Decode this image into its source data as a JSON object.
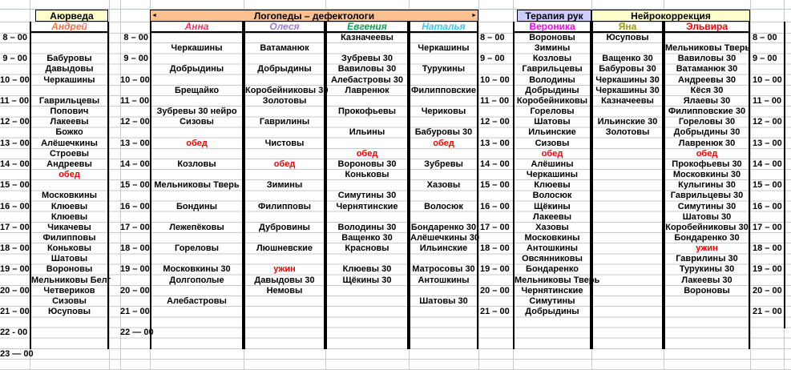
{
  "groups": [
    {
      "label": "Аюрведа",
      "bg": "#FFFFCC"
    },
    {
      "label": "Логопеды – дефектологи",
      "bg": "#FAC090"
    },
    {
      "label": "Терапия рук",
      "bg": "#CCCCFF"
    },
    {
      "label": "Нейрокоррекция",
      "bg": "#FFFFCC"
    }
  ],
  "meals": {
    "labels": [
      "обед",
      "ужин"
    ],
    "color": "#FF0000"
  },
  "specialists": [
    {
      "name": "Андрей",
      "color": "#FF7148",
      "italic": true,
      "slots": [
        "",
        "",
        "Бабуровы",
        "Давыдовы",
        "Черкашины",
        "",
        "Гаврильцевы",
        "Попович",
        "Лакеевы",
        "Божко",
        "Алёшечкины",
        "Строевы",
        "Андреевы",
        "обед",
        "",
        "Московкины",
        "Клюевы",
        "Клюевы",
        "Чикачевы",
        "Филипповы",
        "Коньковы",
        "Шатовы",
        "Вороновы",
        "Мельниковы Белг",
        "Четвериков",
        "Сизовы",
        "Юсуповы",
        "",
        "",
        ""
      ]
    },
    {
      "name": "Анна",
      "color": "#FF3366",
      "italic": true,
      "slots": [
        "",
        "Черкашины",
        "",
        "Добрыдины",
        "",
        "Брещайко",
        "",
        "Зубревы 30 нейро",
        "Сизовы",
        "",
        "обед",
        "",
        "Козловы",
        "",
        "Мельниковы Тверь",
        "",
        "Бондины",
        "",
        "Лежепёковы",
        "",
        "Гореловы",
        "",
        "Московкины 30",
        "Долгополые",
        "",
        "Алебастровы",
        "",
        "",
        "",
        ""
      ]
    },
    {
      "name": "Олеся",
      "color": "#9A7BD8",
      "italic": true,
      "slots": [
        "",
        "Ватаманюк",
        "",
        "Добрыдины",
        "",
        "Коробейниковы 30",
        "Золотовы",
        "",
        "Гаврилины",
        "",
        "Чистовы",
        "",
        "обед",
        "",
        "Зимины",
        "",
        "Филипповы",
        "",
        "Дубровины",
        "",
        "Люшневские",
        "",
        "ужин",
        "Давыдовы 30",
        "Немовы",
        "",
        "",
        "",
        "",
        ""
      ]
    },
    {
      "name": "Евгения",
      "color": "#00A651",
      "italic": true,
      "slots": [
        "Казначеевы",
        "",
        "Зубревы 30",
        "Вавиловы 30",
        "Алебастровы 30",
        "Лавренюк",
        "",
        "Прокофьевы",
        "",
        "Ильины",
        "",
        "обед",
        "Вороновы 30",
        "Коньковы",
        "",
        "Симутины 30",
        "Чернятинские",
        "",
        "Володины 30",
        "Ващенко 30",
        "Красновы",
        "",
        "Клюевы 30",
        "Щёкины 30",
        "",
        "",
        "",
        "",
        "",
        ""
      ]
    },
    {
      "name": "Наталья",
      "color": "#33CCF0",
      "italic": true,
      "slots": [
        "",
        "Черкашины",
        "",
        "Турукины",
        "",
        "Филипповские",
        "",
        "Чериковы",
        "",
        "Бабуровы 30",
        "обед",
        "",
        "Зубревы",
        "",
        "Хазовы",
        "",
        "Волосюк",
        "",
        "Бондаренко 30",
        "Алёшечкины 30",
        "Ильинские",
        "",
        "Матросовы 30",
        "Антошкины",
        "",
        "Шатовы 30",
        "",
        "",
        "",
        ""
      ]
    },
    {
      "name": "Вероника",
      "color": "#FF00FF",
      "italic": false,
      "slots": [
        "Вороновы",
        "Зимины",
        "Козловы",
        "Гаврильцевы",
        "Володины",
        "Добрыдины",
        "Коробейниковы",
        "Гореловы",
        "Шатовы",
        "Ильинские",
        "Сизовы",
        "обед",
        "Алёшины",
        "Черкашины",
        "Клюевы",
        "Волосюк",
        "Щёкины",
        "Лакеевы",
        "Хазовы",
        "Московкины",
        "Антошкины",
        "Овсянниковы",
        "Бондаренко",
        "Мельниковы Тверь",
        "Чернятинские",
        "Симутины",
        "Добрыдины",
        "",
        "",
        ""
      ]
    },
    {
      "name": "Яна",
      "color": "#9A9A00",
      "italic": false,
      "slots": [
        "Юсуповы",
        "",
        "Ващенко 30",
        "Бабуровы 30",
        "Черкашины 30",
        "Черкашины 30",
        "Казначеевы",
        "",
        "Ильинские 30",
        "Золотовы",
        "",
        "",
        "",
        "",
        "",
        "",
        "",
        "",
        "",
        "",
        "",
        "",
        "",
        "",
        "",
        "",
        "",
        "",
        "",
        ""
      ]
    },
    {
      "name": "Эльвира",
      "color": "#FF0000",
      "italic": false,
      "slots": [
        "",
        "Мельниковы Тверь",
        "Вавиловы 30",
        "Ватаманюк 30",
        "Андреевы 30",
        "Кёся 30",
        "Ялаевы 30",
        "Филипповские 30",
        "Гореловы 30",
        "Добрыдины 30",
        "Лавренюк 30",
        "обед",
        "Прокофьевы 30",
        "Московкины 30",
        "Кулыгины 30",
        "Гаврильцевы 30",
        "Симутины 30",
        "Шатовы 30",
        "Коробейниковы 30",
        "Бондаренко 30",
        "ужин",
        "Гаврилины 30",
        "Турукины 30",
        "Лакеевы 30",
        "Вороновы",
        "",
        "",
        "",
        "",
        ""
      ]
    }
  ],
  "time_columns": [
    {
      "id": "time-left",
      "slots": [
        "8 – 00",
        "",
        "9 – 00",
        "",
        "10 – 00",
        "",
        "11 – 00",
        "",
        "12 – 00",
        "",
        "13 – 00",
        "",
        "14 – 00",
        "",
        "15 – 00",
        "",
        "16 – 00",
        "",
        "17 – 00",
        "",
        "18 – 00",
        "",
        "19 – 00",
        "",
        "20 – 00",
        "",
        "21 – 00",
        "",
        "22  - 00",
        "",
        "23 — 00",
        ""
      ]
    },
    {
      "id": "time-mid-left",
      "slots": [
        "8 – 00",
        "",
        "9 – 00",
        "",
        "10 – 00",
        "",
        "11 – 00",
        "",
        "12 – 00",
        "",
        "13 – 00",
        "",
        "14 – 00",
        "",
        "15 – 00",
        "",
        "16 – 00",
        "",
        "17 – 00",
        "",
        "18 – 00",
        "",
        "19 – 00",
        "",
        "20 – 00",
        "",
        "21 – 00",
        "",
        "22 — 00",
        "",
        "",
        ""
      ]
    },
    {
      "id": "time-mid-right",
      "slots": [
        "8 – 00",
        "",
        "9 – 00",
        "",
        "10 – 00",
        "",
        "11 – 00",
        "",
        "12 – 00",
        "",
        "13 – 00",
        "",
        "14 – 00",
        "",
        "15 – 00",
        "",
        "16 – 00",
        "",
        "17 – 00",
        "",
        "18 – 00",
        "",
        "19 – 00",
        "",
        "20 – 00",
        "",
        "21 – 00",
        "",
        "",
        "",
        "",
        ""
      ]
    },
    {
      "id": "time-right",
      "slots": [
        "8 – 00",
        "",
        "9 – 00",
        "",
        "10 – 00",
        "",
        "11 – 00",
        "",
        "12 – 00",
        "",
        "13 – 00",
        "",
        "14 – 00",
        "",
        "15 – 00",
        "",
        "16 – 00",
        "",
        "17 – 00",
        "",
        "18 – 00",
        "",
        "19 – 00",
        "",
        "20 – 00",
        "",
        "21 – 00",
        "",
        "",
        "",
        "",
        ""
      ]
    }
  ],
  "merge_arrows": {
    "left": "◄",
    "right": "►"
  }
}
